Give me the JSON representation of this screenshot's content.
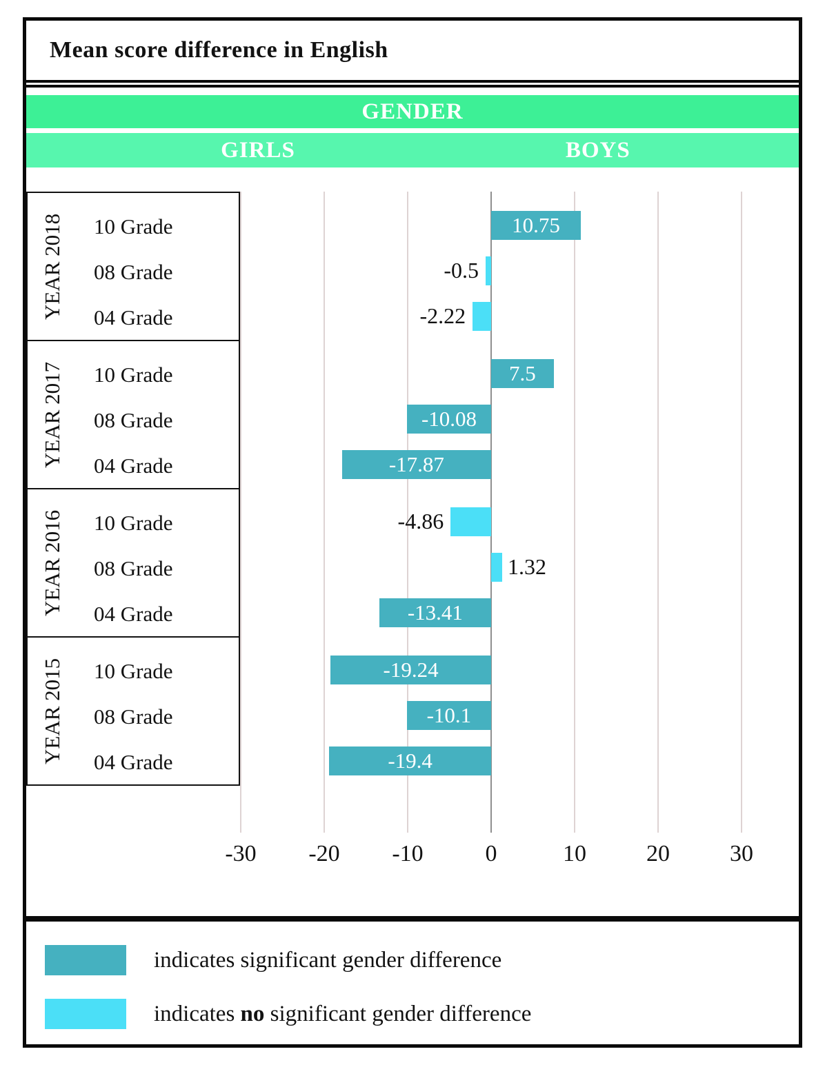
{
  "title": "Mean score difference in English",
  "header": {
    "gender": "GENDER",
    "girls": "GIRLS",
    "boys": "BOYS"
  },
  "colors": {
    "significant": "#45b1c0",
    "not_significant": "#4bdff7",
    "band_dark_green": "#3df096",
    "band_light_green": "#57f6ae",
    "gridline": "#ded3d3",
    "zero_line": "#8f8f8f"
  },
  "chart_data": {
    "type": "bar",
    "orientation": "horizontal",
    "title": "Mean score difference in English",
    "axis_ticks": [
      -30,
      -20,
      -10,
      0,
      10,
      20,
      30
    ],
    "xlim": [
      -37,
      37
    ],
    "grid": true,
    "negative_side_label": "GIRLS",
    "positive_side_label": "BOYS",
    "groups": [
      {
        "year": "YEAR 2018",
        "rows": [
          {
            "grade": "10 Grade",
            "value": 10.75,
            "label": "10.75",
            "significant": true
          },
          {
            "grade": "08 Grade",
            "value": -0.5,
            "label": "-0.5",
            "significant": false
          },
          {
            "grade": "04 Grade",
            "value": -2.22,
            "label": "-2.22",
            "significant": false
          }
        ]
      },
      {
        "year": "YEAR 2017",
        "rows": [
          {
            "grade": "10 Grade",
            "value": 7.5,
            "label": "7.5",
            "significant": true
          },
          {
            "grade": "08 Grade",
            "value": -10.08,
            "label": "-10.08",
            "significant": true
          },
          {
            "grade": "04 Grade",
            "value": -17.87,
            "label": "-17.87",
            "significant": true
          }
        ]
      },
      {
        "year": "YEAR 2016",
        "rows": [
          {
            "grade": "10 Grade",
            "value": -4.86,
            "label": "-4.86",
            "significant": false
          },
          {
            "grade": "08 Grade",
            "value": 1.32,
            "label": "1.32",
            "significant": false
          },
          {
            "grade": "04 Grade",
            "value": -13.41,
            "label": "-13.41",
            "significant": true
          }
        ]
      },
      {
        "year": "YEAR 2015",
        "rows": [
          {
            "grade": "10 Grade",
            "value": -19.24,
            "label": "-19.24",
            "significant": true
          },
          {
            "grade": "08 Grade",
            "value": -10.1,
            "label": "-10.1",
            "significant": true
          },
          {
            "grade": "04 Grade",
            "value": -19.4,
            "label": "-19.4",
            "significant": true
          }
        ]
      }
    ]
  },
  "legend": {
    "items": [
      {
        "swatch": "significant",
        "text_before": "indicates significant gender difference",
        "bold": "",
        "text_after": ""
      },
      {
        "swatch": "not_significant",
        "text_before": "indicates ",
        "bold": "no",
        "text_after": " significant gender difference"
      }
    ]
  }
}
